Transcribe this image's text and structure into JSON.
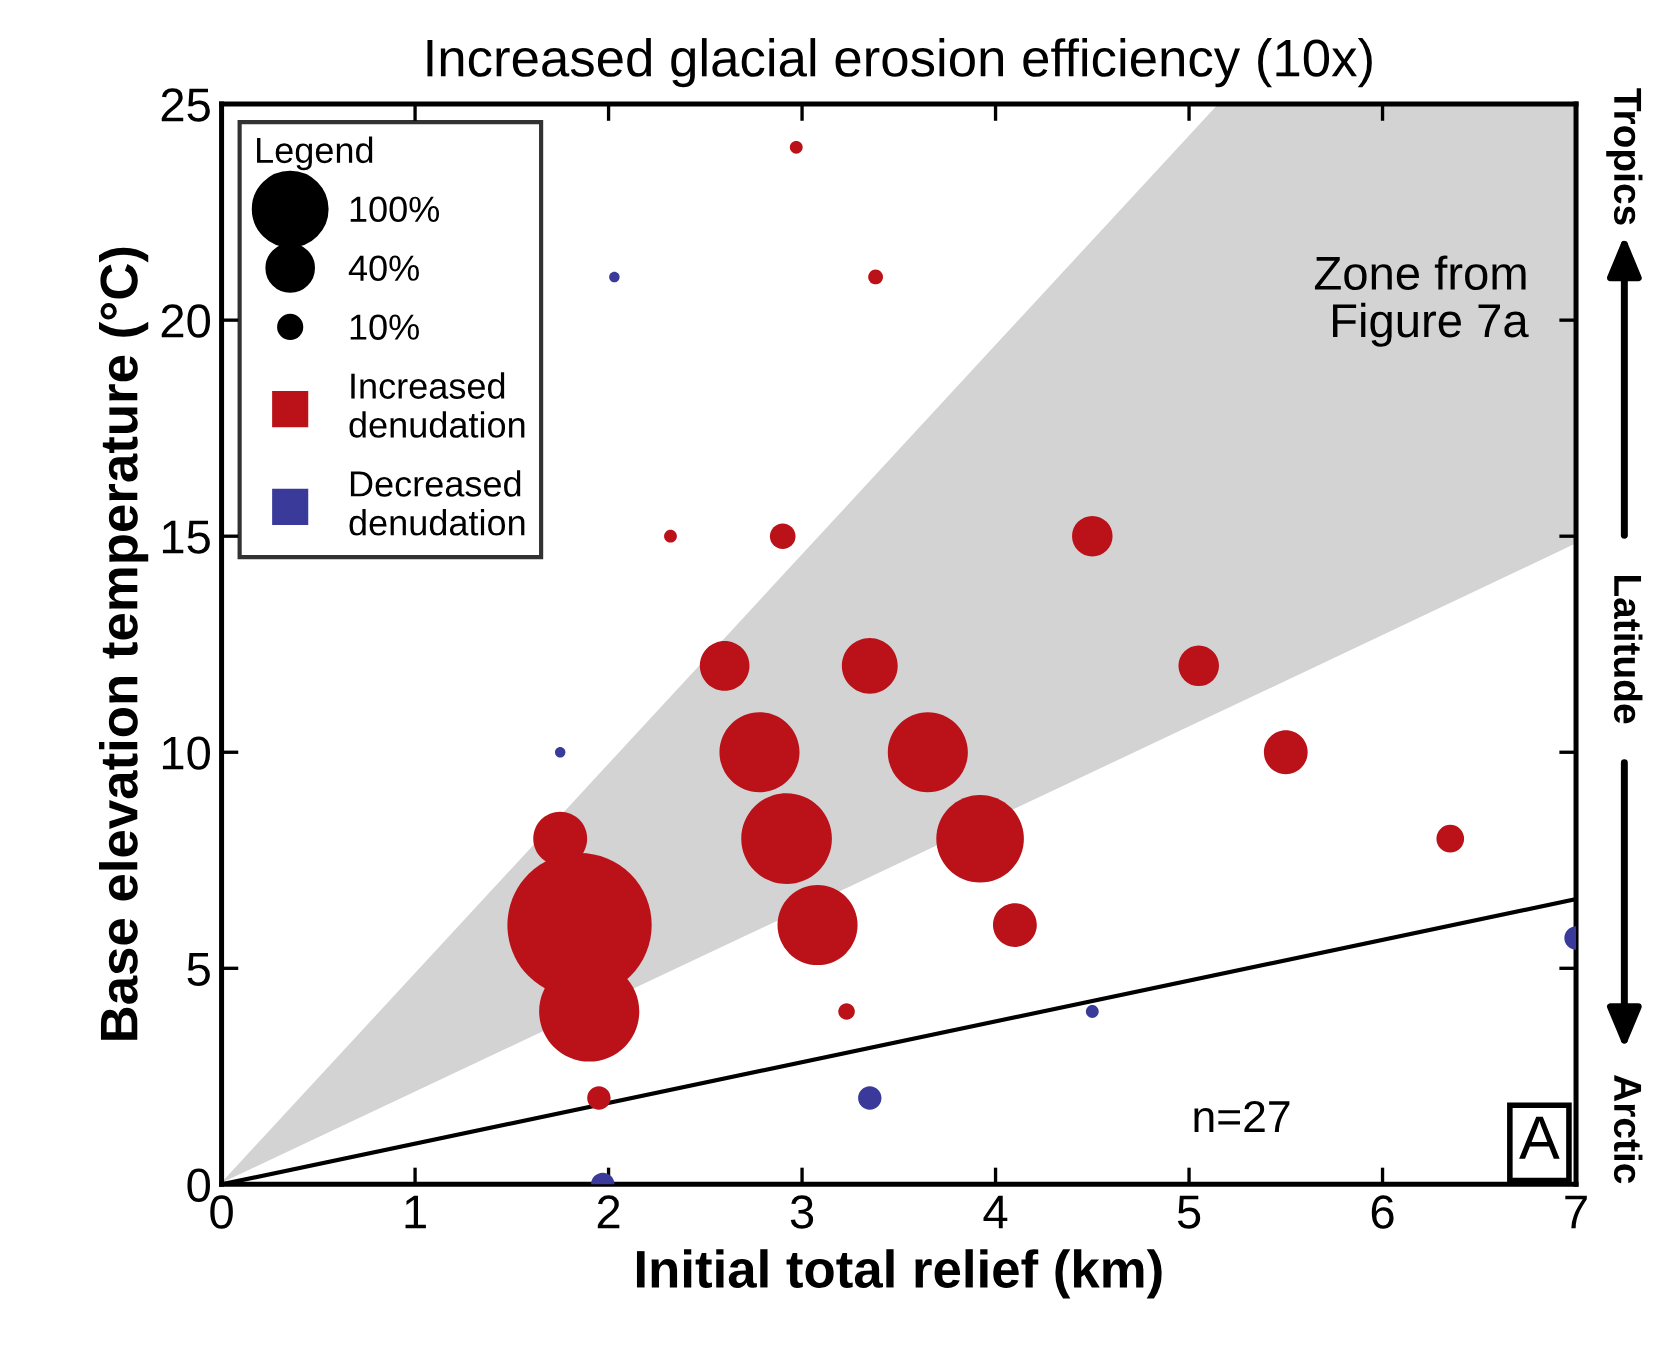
{
  "chart_data": {
    "type": "bubble",
    "title": "Increased glacial erosion efficiency (10x)",
    "xlabel": "Initial total relief (km)",
    "ylabel": "Base elevation temperature (°C)",
    "legend_title": "Legend",
    "xlim": [
      0,
      7
    ],
    "ylim": [
      0,
      25
    ],
    "xticks": [
      0,
      1,
      2,
      3,
      4,
      5,
      6,
      7
    ],
    "yticks": [
      0,
      5,
      10,
      15,
      20,
      25
    ],
    "grid": false,
    "legend": "top left",
    "marker": "circle",
    "size_legend": [
      {
        "value": 100,
        "label": "100%"
      },
      {
        "value": 40,
        "label": "40%"
      },
      {
        "value": 10,
        "label": "10%"
      }
    ],
    "annotations": [
      "Zone from\nFigure 7a",
      "n=27",
      "A",
      "Tropics",
      "Latitude",
      "Arctic"
    ],
    "series": [
      {
        "type": "area",
        "color": "#d3d3d3",
        "marker": "none",
        "x": [
          0,
          5.16,
          7
        ],
        "values": [
          0,
          25,
          25
        ]
      },
      {
        "type": "area",
        "color": "#ffffff",
        "marker": "none",
        "x": [
          0,
          5.16,
          7
        ],
        "values": [
          0,
          10.9,
          14.8
        ]
      },
      {
        "type": "line",
        "color": "#000000",
        "x": [
          0,
          7
        ],
        "values": [
          0,
          6.6
        ],
        "line_style": "solid",
        "marker": "none"
      },
      {
        "name": "Increased\ndenudation",
        "color": "#bb1118",
        "x": [
          1.75,
          1.85,
          1.9,
          1.95,
          2.97,
          2.32,
          2.9,
          2.6,
          3.38,
          3.35,
          2.78,
          2.92,
          3.08,
          3.65,
          3.92,
          4.1,
          3.23,
          4.5,
          5.05,
          5.5,
          6.35
        ],
        "values": [
          8,
          6,
          4,
          2,
          24,
          15,
          15,
          12,
          21,
          12,
          10,
          8,
          6,
          10,
          8,
          6,
          4,
          15,
          12,
          10,
          8
        ],
        "sizes": [
          53,
          380,
          183,
          10,
          3,
          3,
          12,
          45,
          4,
          57,
          117,
          150,
          117,
          117,
          140,
          35,
          5,
          30,
          30,
          35,
          14
        ]
      },
      {
        "name": "Decreased\ndenudation",
        "color": "#3a3a9a",
        "x": [
          1.97,
          1.75,
          2.03,
          3.35,
          4.5,
          7.0
        ],
        "values": [
          0,
          10,
          21,
          2,
          4,
          5.7
        ],
        "sizes": [
          10,
          2,
          2,
          10,
          3,
          10
        ]
      }
    ]
  }
}
